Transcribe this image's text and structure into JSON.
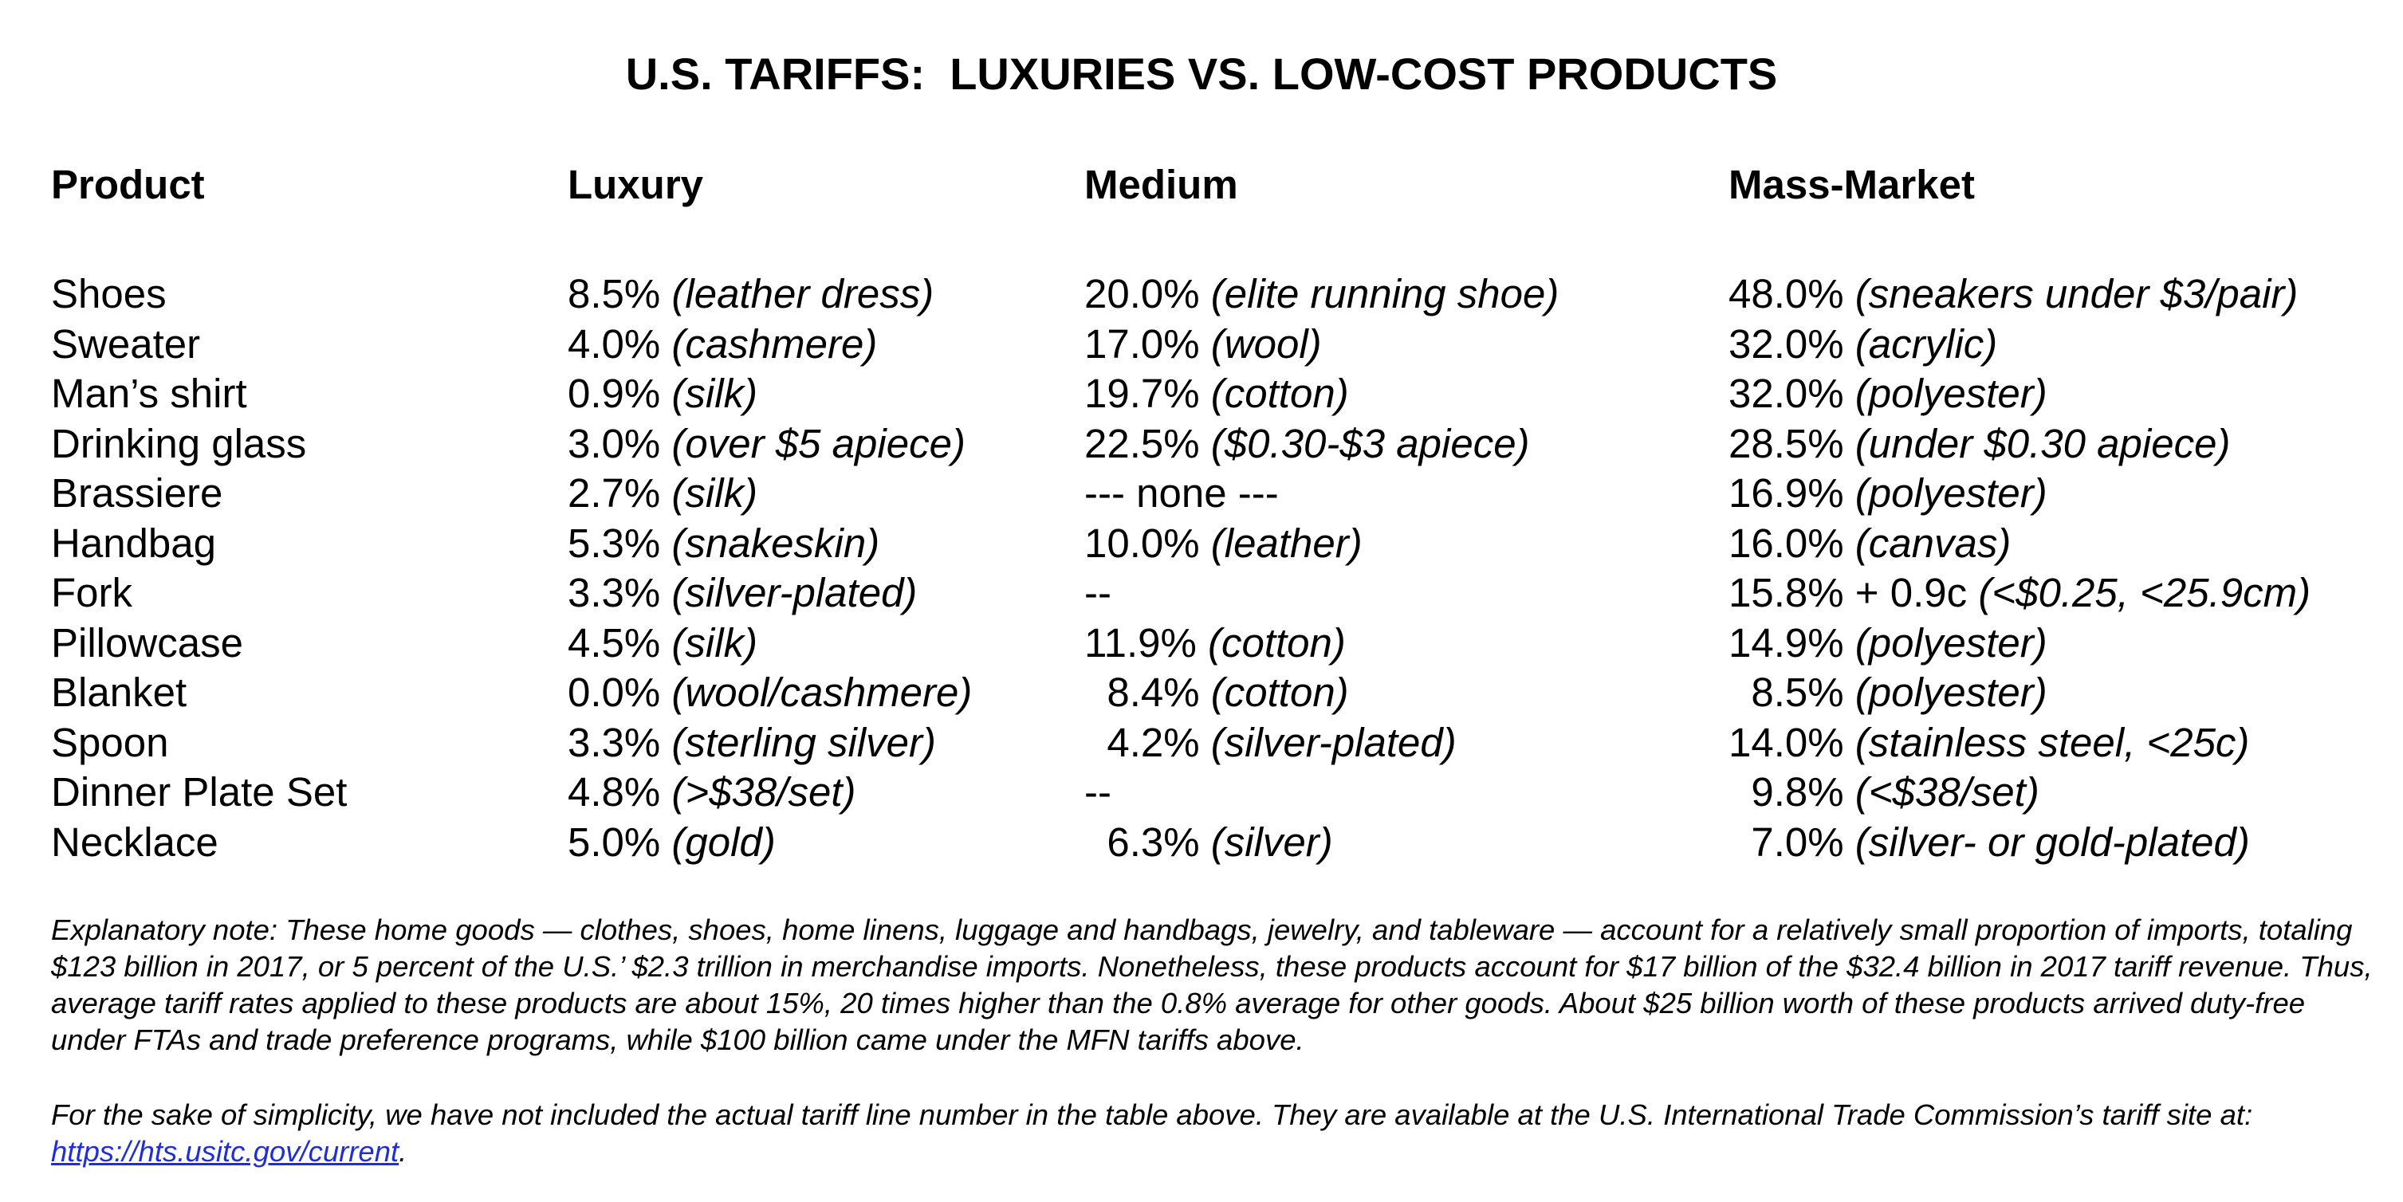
{
  "title": "U.S. TARIFFS:  LUXURIES VS. LOW-COST PRODUCTS",
  "headers": {
    "product": "Product",
    "luxury": "Luxury",
    "medium": "Medium",
    "mass": "Mass-Market"
  },
  "rows": [
    {
      "product": "Shoes",
      "luxury": {
        "rate": "8.5%",
        "desc": "(leather dress)"
      },
      "medium": {
        "rate": "20.0%",
        "desc": "(elite running shoe)"
      },
      "mass": {
        "rate": "48.0%",
        "desc": "(sneakers under $3/pair)"
      }
    },
    {
      "product": "Sweater",
      "luxury": {
        "rate": "4.0%",
        "desc": "(cashmere)"
      },
      "medium": {
        "rate": "17.0%",
        "desc": "(wool)"
      },
      "mass": {
        "rate": "32.0%",
        "desc": "(acrylic)"
      }
    },
    {
      "product": "Man’s shirt",
      "luxury": {
        "rate": "0.9%",
        "desc": "(silk)"
      },
      "medium": {
        "rate": "19.7%",
        "desc": "(cotton)"
      },
      "mass": {
        "rate": "32.0%",
        "desc": "(polyester)"
      }
    },
    {
      "product": "Drinking glass",
      "luxury": {
        "rate": "3.0%",
        "desc": "(over $5 apiece)"
      },
      "medium": {
        "rate": "22.5%",
        "desc": "($0.30-$3 apiece)"
      },
      "mass": {
        "rate": "28.5%",
        "desc": "(under $0.30 apiece)"
      }
    },
    {
      "product": "Brassiere",
      "luxury": {
        "rate": "2.7%",
        "desc": "(silk)"
      },
      "medium": {
        "rate": "--- none ---",
        "desc": ""
      },
      "mass": {
        "rate": "16.9%",
        "desc": "(polyester)"
      }
    },
    {
      "product": "Handbag",
      "luxury": {
        "rate": "5.3%",
        "desc": "(snakeskin)"
      },
      "medium": {
        "rate": "10.0%",
        "desc": "(leather)"
      },
      "mass": {
        "rate": "16.0%",
        "desc": "(canvas)"
      }
    },
    {
      "product": "Fork",
      "luxury": {
        "rate": "3.3%",
        "desc": "(silver-plated)"
      },
      "medium": {
        "rate": "--",
        "desc": ""
      },
      "mass": {
        "rate": "15.8% + 0.9c",
        "desc": "(<$0.25, <25.9cm)"
      }
    },
    {
      "product": "Pillowcase",
      "luxury": {
        "rate": "4.5%",
        "desc": "(silk)"
      },
      "medium": {
        "rate": "11.9%",
        "desc": "(cotton)"
      },
      "mass": {
        "rate": "14.9%",
        "desc": "(polyester)"
      }
    },
    {
      "product": "Blanket",
      "luxury": {
        "rate": "0.0%",
        "desc": "(wool/cashmere)"
      },
      "medium": {
        "rate": "  8.4%",
        "desc": "(cotton)"
      },
      "mass": {
        "rate": "  8.5%",
        "desc": "(polyester)"
      }
    },
    {
      "product": "Spoon",
      "luxury": {
        "rate": "3.3%",
        "desc": "(sterling silver)"
      },
      "medium": {
        "rate": "  4.2%",
        "desc": "(silver-plated)"
      },
      "mass": {
        "rate": "14.0%",
        "desc": "(stainless steel, <25c)"
      }
    },
    {
      "product": "Dinner Plate Set",
      "luxury": {
        "rate": "4.8%",
        "desc": "(>$38/set)"
      },
      "medium": {
        "rate": "--",
        "desc": ""
      },
      "mass": {
        "rate": "  9.8%",
        "desc": "(<$38/set)"
      }
    },
    {
      "product": "Necklace",
      "luxury": {
        "rate": "5.0%",
        "desc": "(gold)"
      },
      "medium": {
        "rate": "  6.3%",
        "desc": "(silver)"
      },
      "mass": {
        "rate": "  7.0%",
        "desc": "(silver- or gold-plated)"
      }
    }
  ],
  "notes": {
    "explanatory": "Explanatory note: These home goods — clothes, shoes, home linens, luggage and handbags, jewelry, and tableware — account for a relatively small proportion of imports, totaling $123 billion in 2017, or 5 percent of the U.S.’ $2.3 trillion in merchandise imports.  Nonetheless, these products account for $17 billion of the $32.4 billion in 2017 tariff revenue. Thus, average tariff rates applied to these products are about 15%, 20 times higher than the 0.8% average for other goods. About $25 billion worth of these products arrived duty-free under FTAs and trade preference programs, while $100 billion came under the MFN tariffs above.",
    "simplicity_prefix": "For the sake of simplicity, we have not included the actual tariff line number in the table above. They are available at the U.S. International Trade Commission’s tariff site at: ",
    "link_text": "https://hts.usitc.gov/current",
    "simplicity_suffix": "."
  }
}
